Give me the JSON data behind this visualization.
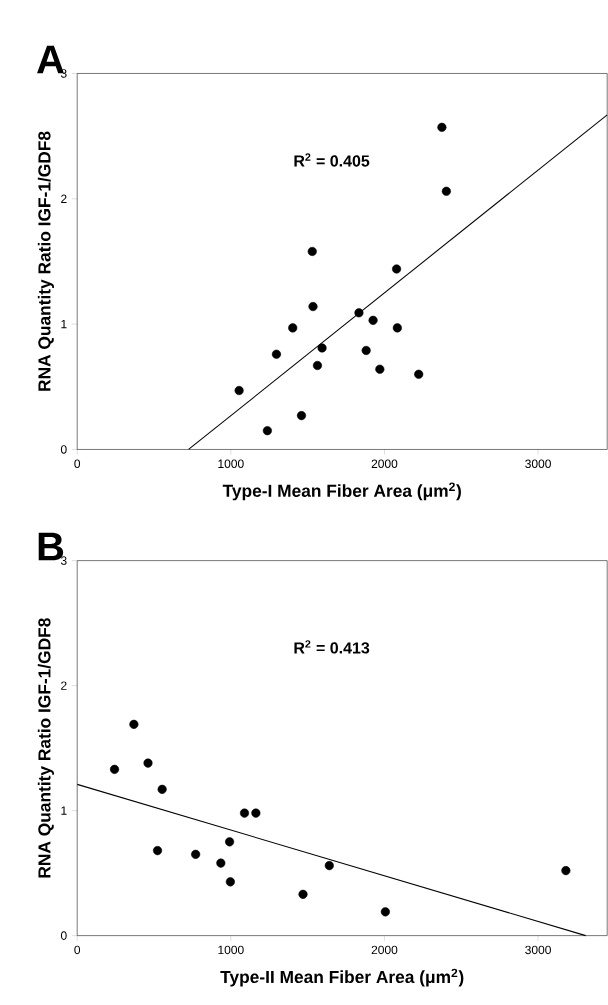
{
  "chart_data": [
    {
      "type": "scatter",
      "title": "A",
      "xlabel": "Type-I Mean Fiber Area (μm$^{2}$)",
      "ylabel": "RNA Quantity Ratio IGF-1/GDF8",
      "annotations": [
        "R$^{2}$ = 0.405"
      ],
      "xlim": [
        0,
        3450
      ],
      "ylim": [
        0,
        3
      ],
      "xticks": [
        0,
        1000,
        2000,
        3000
      ],
      "yticks": [
        0,
        1,
        2,
        3
      ],
      "grid": false,
      "series": [
        {
          "marker": "circle",
          "color": "#000000",
          "x": [
            1054,
            1238,
            1297,
            1403,
            1460,
            1530,
            1535,
            1564,
            1594,
            1834,
            1881,
            1926,
            1970,
            2079,
            2084,
            2223,
            2374,
            2403
          ],
          "values": [
            0.47,
            0.15,
            0.76,
            0.97,
            0.27,
            1.58,
            1.14,
            0.67,
            0.81,
            1.09,
            0.79,
            1.03,
            0.64,
            1.44,
            0.97,
            0.6,
            2.57,
            2.06
          ]
        },
        {
          "type": "line",
          "marker": "none",
          "color": "#000000",
          "x": [
            725,
            3450
          ],
          "values": [
            0,
            2.67
          ]
        }
      ]
    },
    {
      "type": "scatter",
      "title": "B",
      "xlabel": "Type-II Mean Fiber Area (μm$^{2}$)",
      "ylabel": "RNA Quantity Ratio IGF-1/GDF8",
      "annotations": [
        "R$^{2}$ = 0.413"
      ],
      "xlim": [
        0,
        3450
      ],
      "ylim": [
        0,
        3
      ],
      "xticks": [
        0,
        1000,
        2000,
        3000
      ],
      "yticks": [
        0,
        1,
        2,
        3
      ],
      "grid": false,
      "series": [
        {
          "marker": "circle",
          "color": "#000000",
          "x": [
            243,
            369,
            461,
            553,
            523,
            771,
            935,
            992,
            997,
            1089,
            1163,
            1470,
            1641,
            2006,
            3181
          ],
          "values": [
            1.33,
            1.69,
            1.38,
            1.17,
            0.68,
            0.65,
            0.58,
            0.75,
            0.43,
            0.98,
            0.98,
            0.33,
            0.56,
            0.19,
            0.52
          ]
        },
        {
          "type": "line",
          "marker": "none",
          "color": "#000000",
          "x": [
            0,
            3310
          ],
          "values": [
            1.21,
            0
          ]
        }
      ]
    }
  ]
}
